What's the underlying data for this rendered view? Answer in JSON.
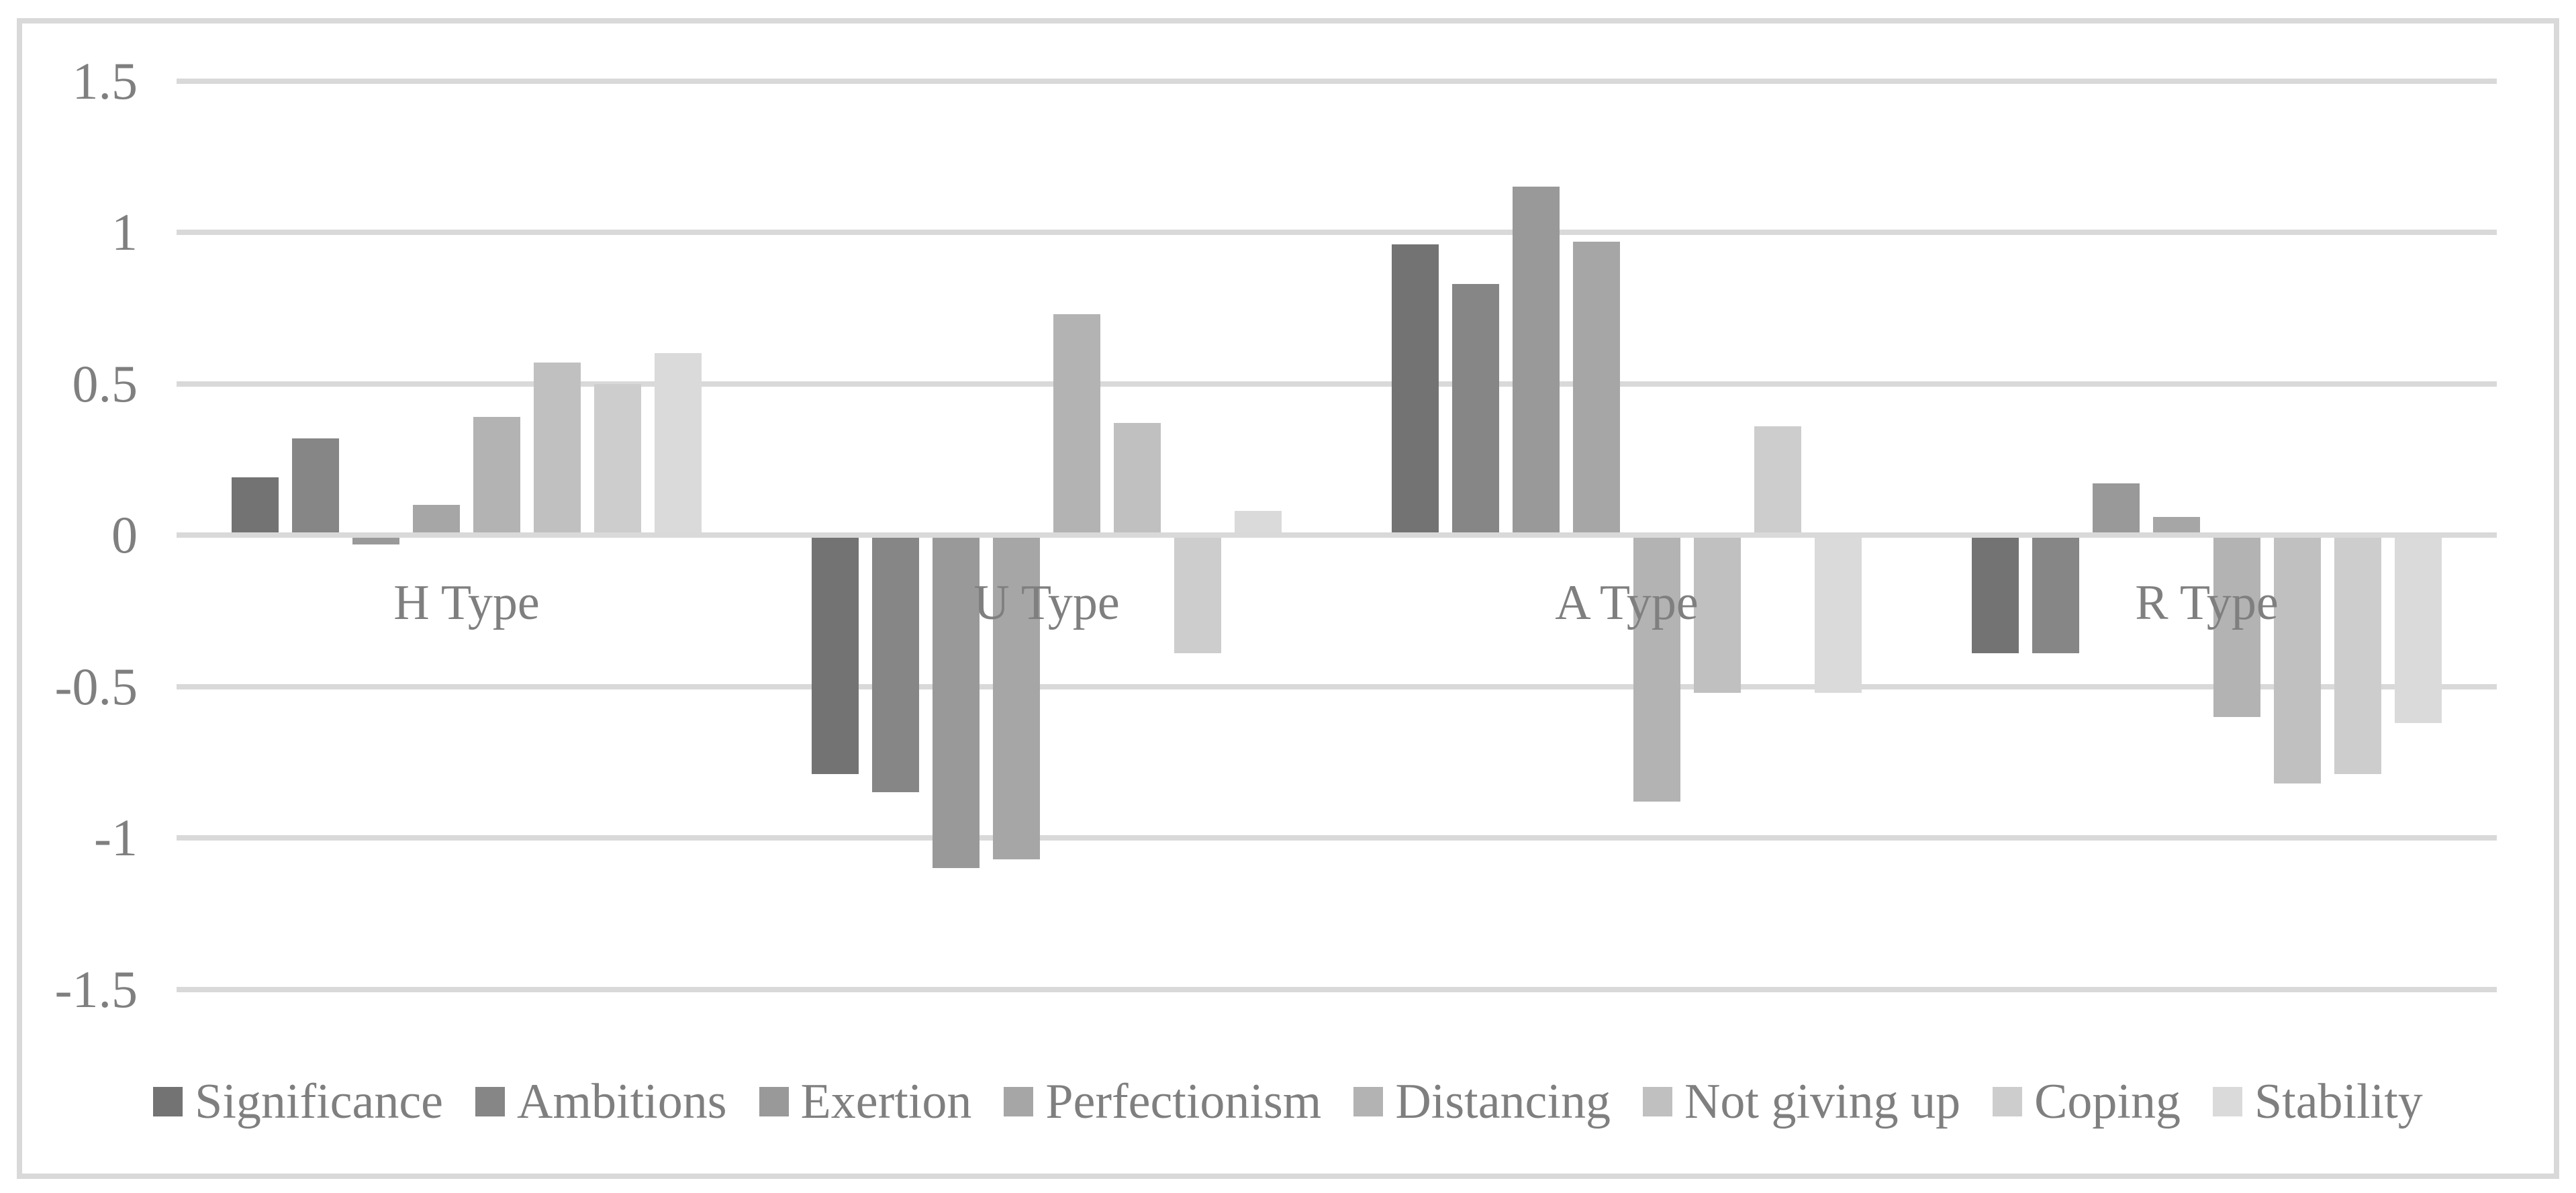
{
  "chart_data": {
    "type": "bar",
    "title": "",
    "xlabel": "",
    "ylabel": "",
    "categories": [
      "H Type",
      "U Type",
      "A Type",
      "R Type"
    ],
    "series": [
      {
        "name": "Significance",
        "color": "#737373",
        "values": [
          0.19,
          -0.79,
          0.96,
          -0.39
        ]
      },
      {
        "name": "Ambitions",
        "color": "#868686",
        "values": [
          0.32,
          -0.85,
          0.83,
          -0.39
        ]
      },
      {
        "name": "Exertion",
        "color": "#999999",
        "values": [
          -0.03,
          -1.1,
          1.15,
          0.17
        ]
      },
      {
        "name": "Perfectionism",
        "color": "#a6a6a6",
        "values": [
          0.1,
          -1.07,
          0.97,
          0.06
        ]
      },
      {
        "name": "Distancing",
        "color": "#b3b3b3",
        "values": [
          0.39,
          0.73,
          -0.88,
          -0.6
        ]
      },
      {
        "name": "Not giving up",
        "color": "#c0c0c0",
        "values": [
          0.57,
          0.37,
          -0.52,
          -0.82
        ]
      },
      {
        "name": "Coping",
        "color": "#cdcdcd",
        "values": [
          0.5,
          -0.39,
          0.36,
          -0.79
        ]
      },
      {
        "name": "Stability",
        "color": "#dadada",
        "values": [
          0.6,
          0.08,
          -0.52,
          -0.62
        ]
      }
    ],
    "y_ticks": [
      1.5,
      1,
      0.5,
      0,
      -0.5,
      -1,
      -1.5
    ],
    "y_tick_labels": [
      "1.5",
      "1",
      "0.5",
      "0",
      "-0.5",
      "-1",
      "-1.5"
    ],
    "ylim": [
      -1.5,
      1.5
    ],
    "grid": true,
    "legend_position": "bottom"
  },
  "colors": {
    "background": "#ffffff",
    "border": "#d9d9d9",
    "gridline": "#d9d9d9",
    "zero_axis": "#d9d9d9",
    "text": "#7f7f7f"
  }
}
